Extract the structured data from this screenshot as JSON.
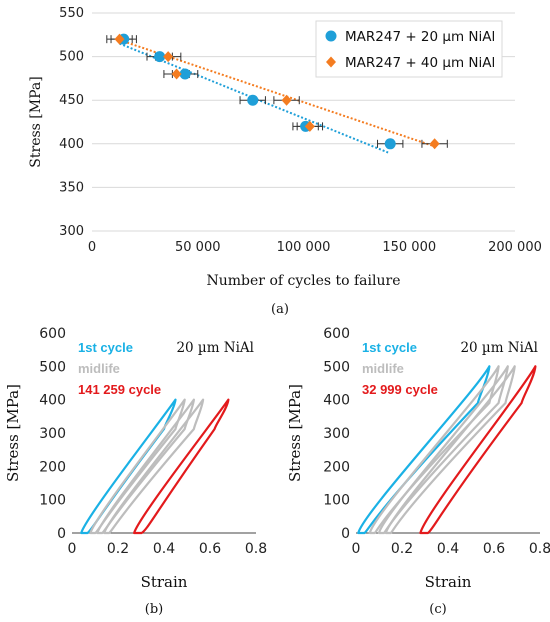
{
  "colors": {
    "series_20": "#1f9fd8",
    "series_40": "#f47c20",
    "cycle_first": "#1ab1e5",
    "midlife": "#bdbdbd",
    "cycle_last": "#e31a1c"
  },
  "chart_data": [
    {
      "id": "a",
      "type": "scatter",
      "caption": "(a)",
      "xlabel": "Number of cycles to failure",
      "ylabel": "Stress [MPa]",
      "xlim": [
        0,
        200000
      ],
      "ylim": [
        300,
        550
      ],
      "xticks": [
        0,
        50000,
        100000,
        150000,
        200000
      ],
      "xtick_labels": [
        "0",
        "50 000",
        "100 000",
        "150 000",
        "200 000"
      ],
      "yticks": [
        300,
        350,
        400,
        450,
        500,
        550
      ],
      "grid": "horizontal",
      "legend_position": "top-right",
      "series": [
        {
          "name": "MAR247 + 20 µm NiAl",
          "marker": "circle",
          "points": [
            [
              15000,
              520
            ],
            [
              32000,
              500
            ],
            [
              44000,
              480
            ],
            [
              76000,
              450
            ],
            [
              101000,
              420
            ],
            [
              141000,
              400
            ]
          ],
          "xerr": 6000,
          "trendline": [
            [
              13000,
              515
            ],
            [
              140000,
              390
            ]
          ]
        },
        {
          "name": "MAR247 + 40 µm NiAl",
          "marker": "diamond",
          "points": [
            [
              13000,
              520
            ],
            [
              36000,
              500
            ],
            [
              40000,
              480
            ],
            [
              92000,
              450
            ],
            [
              103000,
              420
            ],
            [
              162000,
              400
            ]
          ],
          "xerr": 6000,
          "trendline": [
            [
              13000,
              519
            ],
            [
              162000,
              397
            ]
          ]
        }
      ]
    },
    {
      "id": "b",
      "type": "line",
      "caption": "(b)",
      "xlabel": "Strain",
      "ylabel": "Stress [MPa]",
      "xlim": [
        0,
        0.8
      ],
      "ylim": [
        0,
        600
      ],
      "xticks": [
        0,
        0.2,
        0.4,
        0.6,
        0.8
      ],
      "yticks": [
        0,
        100,
        200,
        300,
        400,
        500,
        600
      ],
      "annotation": "20 µm NiAl",
      "labels": {
        "first": "1st cycle",
        "mid": "midlife",
        "last": "141 259 cycle"
      },
      "loops": [
        {
          "group": "first",
          "start": 0.04,
          "peak": 0.45,
          "width": 0.05,
          "top": 400
        },
        {
          "group": "mid",
          "start": 0.08,
          "peak": 0.49,
          "width": 0.04,
          "top": 400
        },
        {
          "group": "mid",
          "start": 0.11,
          "peak": 0.53,
          "width": 0.04,
          "top": 400
        },
        {
          "group": "mid",
          "start": 0.14,
          "peak": 0.57,
          "width": 0.04,
          "top": 400
        },
        {
          "group": "last",
          "start": 0.27,
          "peak": 0.68,
          "width": 0.06,
          "top": 400
        }
      ]
    },
    {
      "id": "c",
      "type": "line",
      "caption": "(c)",
      "xlabel": "Strain",
      "ylabel": "Stress [MPa]",
      "xlim": [
        0,
        0.8
      ],
      "ylim": [
        0,
        600
      ],
      "xticks": [
        0,
        0.2,
        0.4,
        0.6,
        0.8
      ],
      "yticks": [
        0,
        100,
        200,
        300,
        400,
        500,
        600
      ],
      "annotation": "20 µm NiAl",
      "labels": {
        "first": "1st cycle",
        "mid": "midlife",
        "last": "32 999 cycle"
      },
      "loops": [
        {
          "group": "first",
          "start": 0.01,
          "peak": 0.58,
          "width": 0.05,
          "top": 500
        },
        {
          "group": "mid",
          "start": 0.06,
          "peak": 0.62,
          "width": 0.04,
          "top": 500
        },
        {
          "group": "mid",
          "start": 0.1,
          "peak": 0.66,
          "width": 0.04,
          "top": 500
        },
        {
          "group": "mid",
          "start": 0.13,
          "peak": 0.69,
          "width": 0.04,
          "top": 500
        },
        {
          "group": "last",
          "start": 0.28,
          "peak": 0.78,
          "width": 0.06,
          "top": 500
        }
      ]
    }
  ]
}
